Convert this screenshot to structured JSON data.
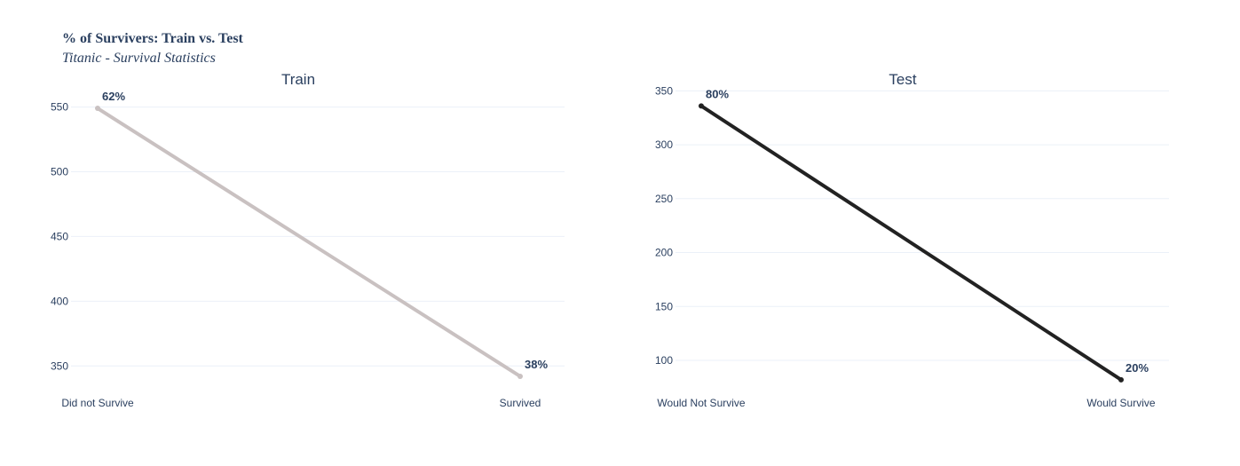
{
  "figure": {
    "title": "% of Survivers: Train vs. Test",
    "subtitle": "Titanic - Survival Statistics"
  },
  "chart_data": [
    {
      "type": "line",
      "title": "Train",
      "categories": [
        "Did not Survive",
        "Survived"
      ],
      "values": [
        549,
        342
      ],
      "labels": [
        "62%",
        "38%"
      ],
      "yticks": [
        350,
        400,
        450,
        500,
        550
      ],
      "ylim": [
        331,
        560
      ],
      "grid": true,
      "color": "#c9c1c1"
    },
    {
      "type": "line",
      "title": "Test",
      "categories": [
        "Would Not Survive",
        "Would Survive"
      ],
      "values": [
        336,
        82
      ],
      "labels": [
        "80%",
        "20%"
      ],
      "yticks": [
        100,
        150,
        200,
        250,
        300,
        350
      ],
      "ylim": [
        72,
        347
      ],
      "grid": true,
      "color": "#222222"
    }
  ]
}
